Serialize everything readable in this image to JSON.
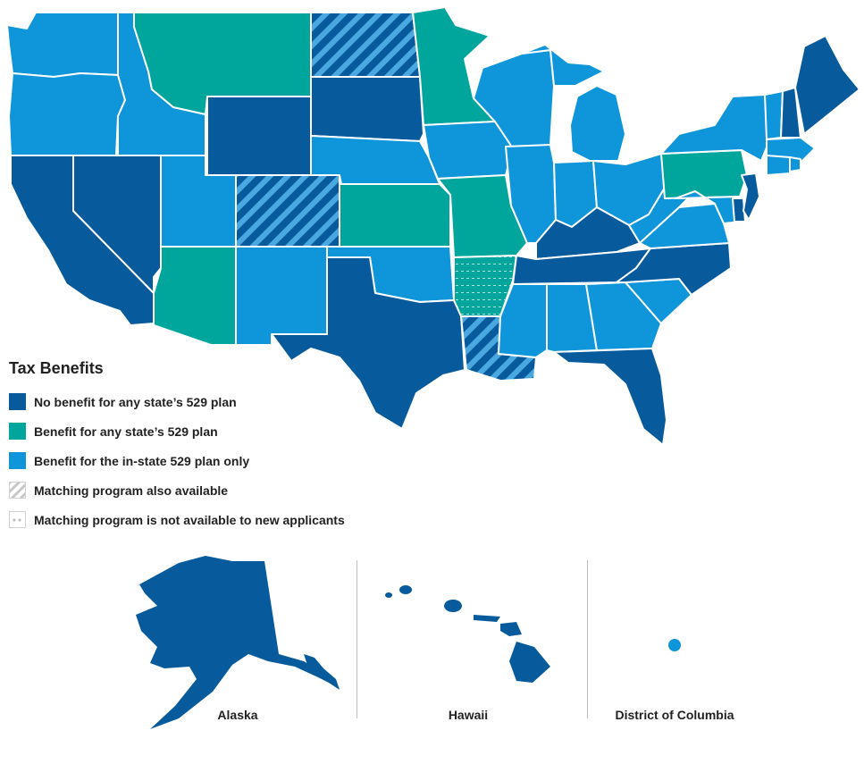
{
  "colors": {
    "no_benefit": "#075a9b",
    "any_state": "#00a69c",
    "in_state": "#0f95d9",
    "hatch": "#4aa8e0",
    "dots_bg": "#5fc9bf",
    "border": "#ffffff"
  },
  "legend": {
    "title": "Tax Benefits",
    "items": [
      {
        "label": "No benefit for any state’s 529 plan",
        "pattern": "solid",
        "color": "#075a9b"
      },
      {
        "label": "Benefit for any state’s 529 plan",
        "pattern": "solid",
        "color": "#00a69c"
      },
      {
        "label": "Benefit for the in-state 529 plan only",
        "pattern": "solid",
        "color": "#0f95d9"
      },
      {
        "label": "Matching program also available",
        "pattern": "stripes",
        "color": "#cfcfcf"
      },
      {
        "label": "Matching program is not available to new applicants",
        "pattern": "dots",
        "color": "#cfcfcf"
      }
    ]
  },
  "insets": [
    {
      "label": "Alaska",
      "category": "no_benefit"
    },
    {
      "label": "Hawaii",
      "category": "no_benefit"
    },
    {
      "label": "District of Columbia",
      "category": "in_state"
    }
  ],
  "states": {
    "no_benefit": [
      "California",
      "Nevada",
      "Wyoming",
      "South Dakota",
      "Texas",
      "Tennessee",
      "Kentucky",
      "North Carolina",
      "Florida",
      "New Jersey",
      "Delaware",
      "New Hampshire",
      "Maine",
      "Alaska",
      "Hawaii"
    ],
    "any_state": [
      "Montana",
      "Minnesota",
      "Arizona",
      "Kansas",
      "Missouri",
      "Pennsylvania",
      "Arkansas"
    ],
    "in_state": [
      "Washington",
      "Oregon",
      "Idaho",
      "Utah",
      "New Mexico",
      "Nebraska",
      "Iowa",
      "Illinois",
      "Indiana",
      "Ohio",
      "Michigan",
      "Wisconsin",
      "Oklahoma",
      "Mississippi",
      "Alabama",
      "Georgia",
      "South Carolina",
      "Virginia",
      "West Virginia",
      "Maryland",
      "New York",
      "Vermont",
      "Massachusetts",
      "Connecticut",
      "Rhode Island",
      "District of Columbia"
    ],
    "matching_program": [
      "North Dakota",
      "Colorado",
      "Louisiana"
    ],
    "matching_closed": [
      "Arkansas"
    ]
  }
}
